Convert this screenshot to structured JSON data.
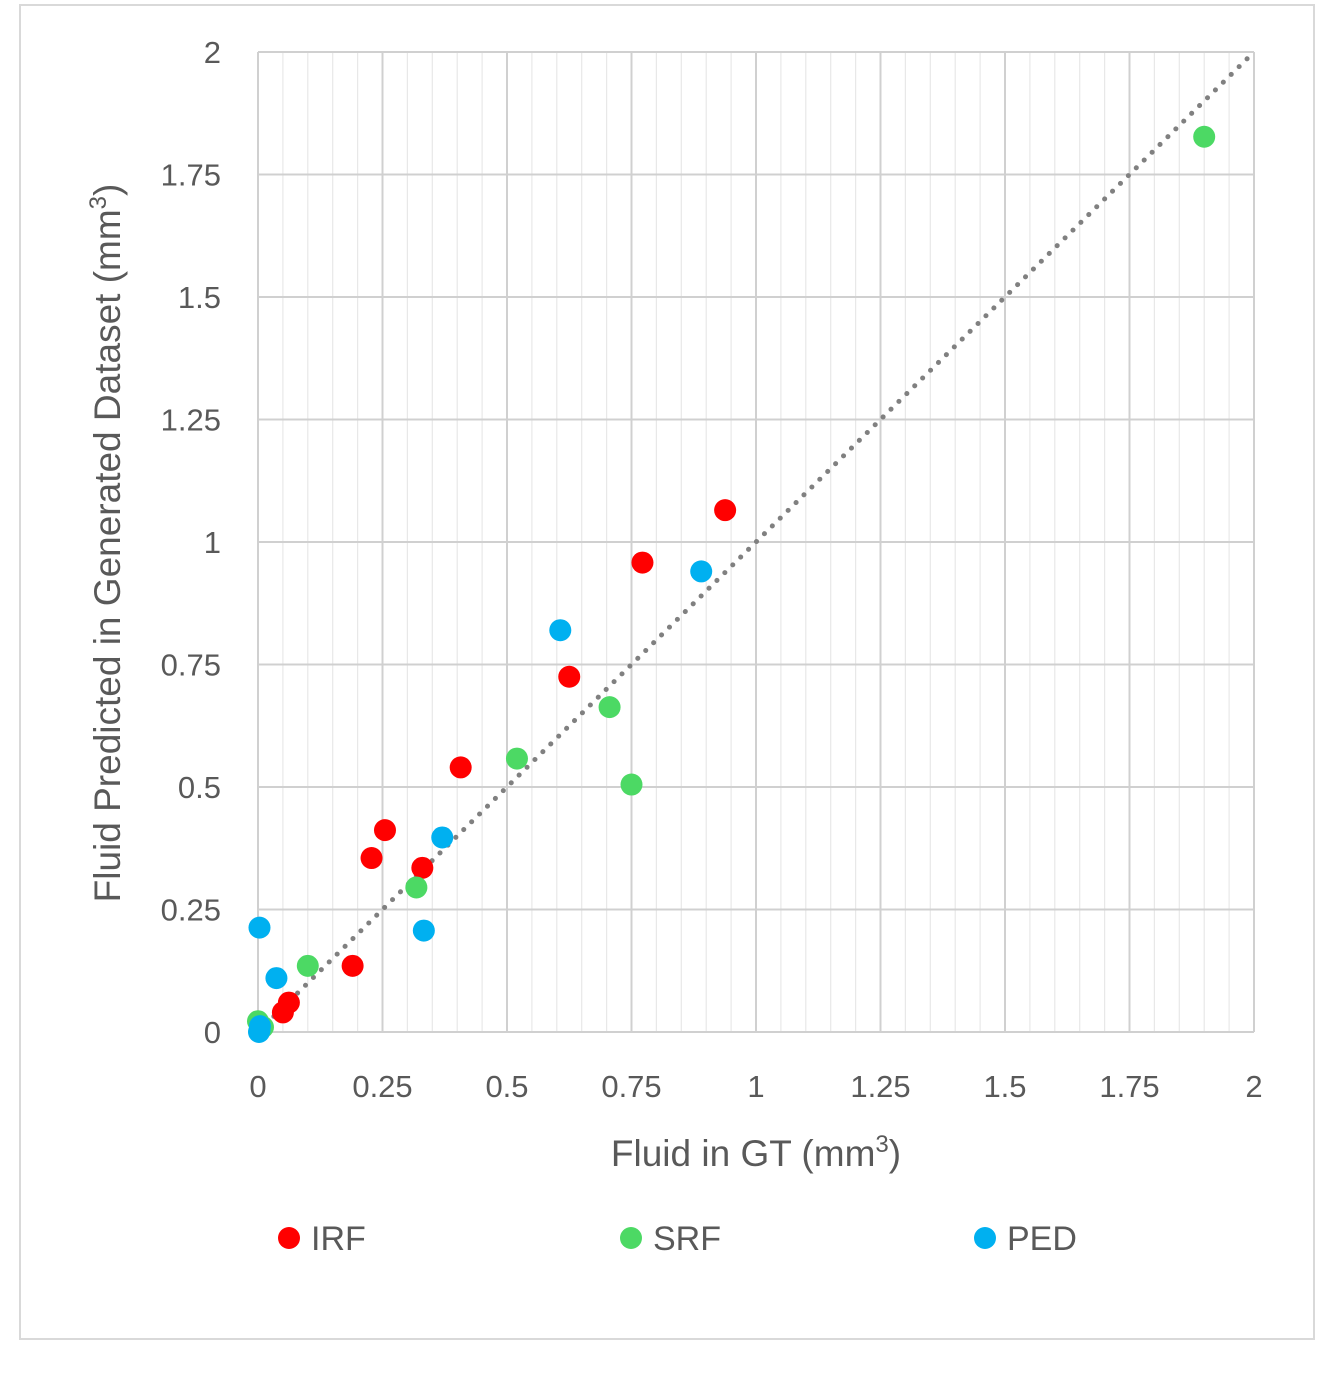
{
  "chart_data": {
    "type": "scatter",
    "title": "",
    "xlabel": "Fluid in GT (mm",
    "xlabel_sup": "3",
    "xlabel_end": ")",
    "ylabel": "Fluid Predicted in Generated Dataset (mm",
    "ylabel_sup": "3",
    "ylabel_end": ")",
    "xlim": [
      0,
      2
    ],
    "ylim": [
      0,
      2
    ],
    "x_ticks": [
      "0",
      "0.25",
      "0.5",
      "0.75",
      "1",
      "1.25",
      "1.5",
      "1.75",
      "2"
    ],
    "y_ticks": [
      "0",
      "0.25",
      "0.5",
      "0.75",
      "1",
      "1.25",
      "1.5",
      "1.75",
      "2"
    ],
    "grid": true,
    "trendline": {
      "style": "dotted",
      "from": [
        0,
        0
      ],
      "to": [
        2,
        2
      ],
      "color": "#808080"
    },
    "legend_position": "bottom",
    "series": [
      {
        "name": "IRF",
        "color": "#ff0000",
        "points": [
          [
            0.05,
            0.04
          ],
          [
            0.062,
            0.06
          ],
          [
            0.19,
            0.135
          ],
          [
            0.228,
            0.355
          ],
          [
            0.255,
            0.412
          ],
          [
            0.33,
            0.335
          ],
          [
            0.407,
            0.54
          ],
          [
            0.625,
            0.725
          ],
          [
            0.772,
            0.958
          ],
          [
            0.938,
            1.065
          ]
        ]
      },
      {
        "name": "SRF",
        "color": "#4cd964",
        "points": [
          [
            0.0,
            0.022
          ],
          [
            0.01,
            0.01
          ],
          [
            0.1,
            0.135
          ],
          [
            0.318,
            0.295
          ],
          [
            0.52,
            0.558
          ],
          [
            0.706,
            0.663
          ],
          [
            0.75,
            0.505
          ],
          [
            1.9,
            1.827
          ]
        ]
      },
      {
        "name": "PED",
        "color": "#00b0f0",
        "points": [
          [
            0.002,
            0.0
          ],
          [
            0.003,
            0.003
          ],
          [
            0.004,
            0.012
          ],
          [
            0.003,
            0.213
          ],
          [
            0.037,
            0.11
          ],
          [
            0.333,
            0.207
          ],
          [
            0.37,
            0.397
          ],
          [
            0.607,
            0.82
          ],
          [
            0.89,
            0.94
          ]
        ]
      }
    ]
  }
}
